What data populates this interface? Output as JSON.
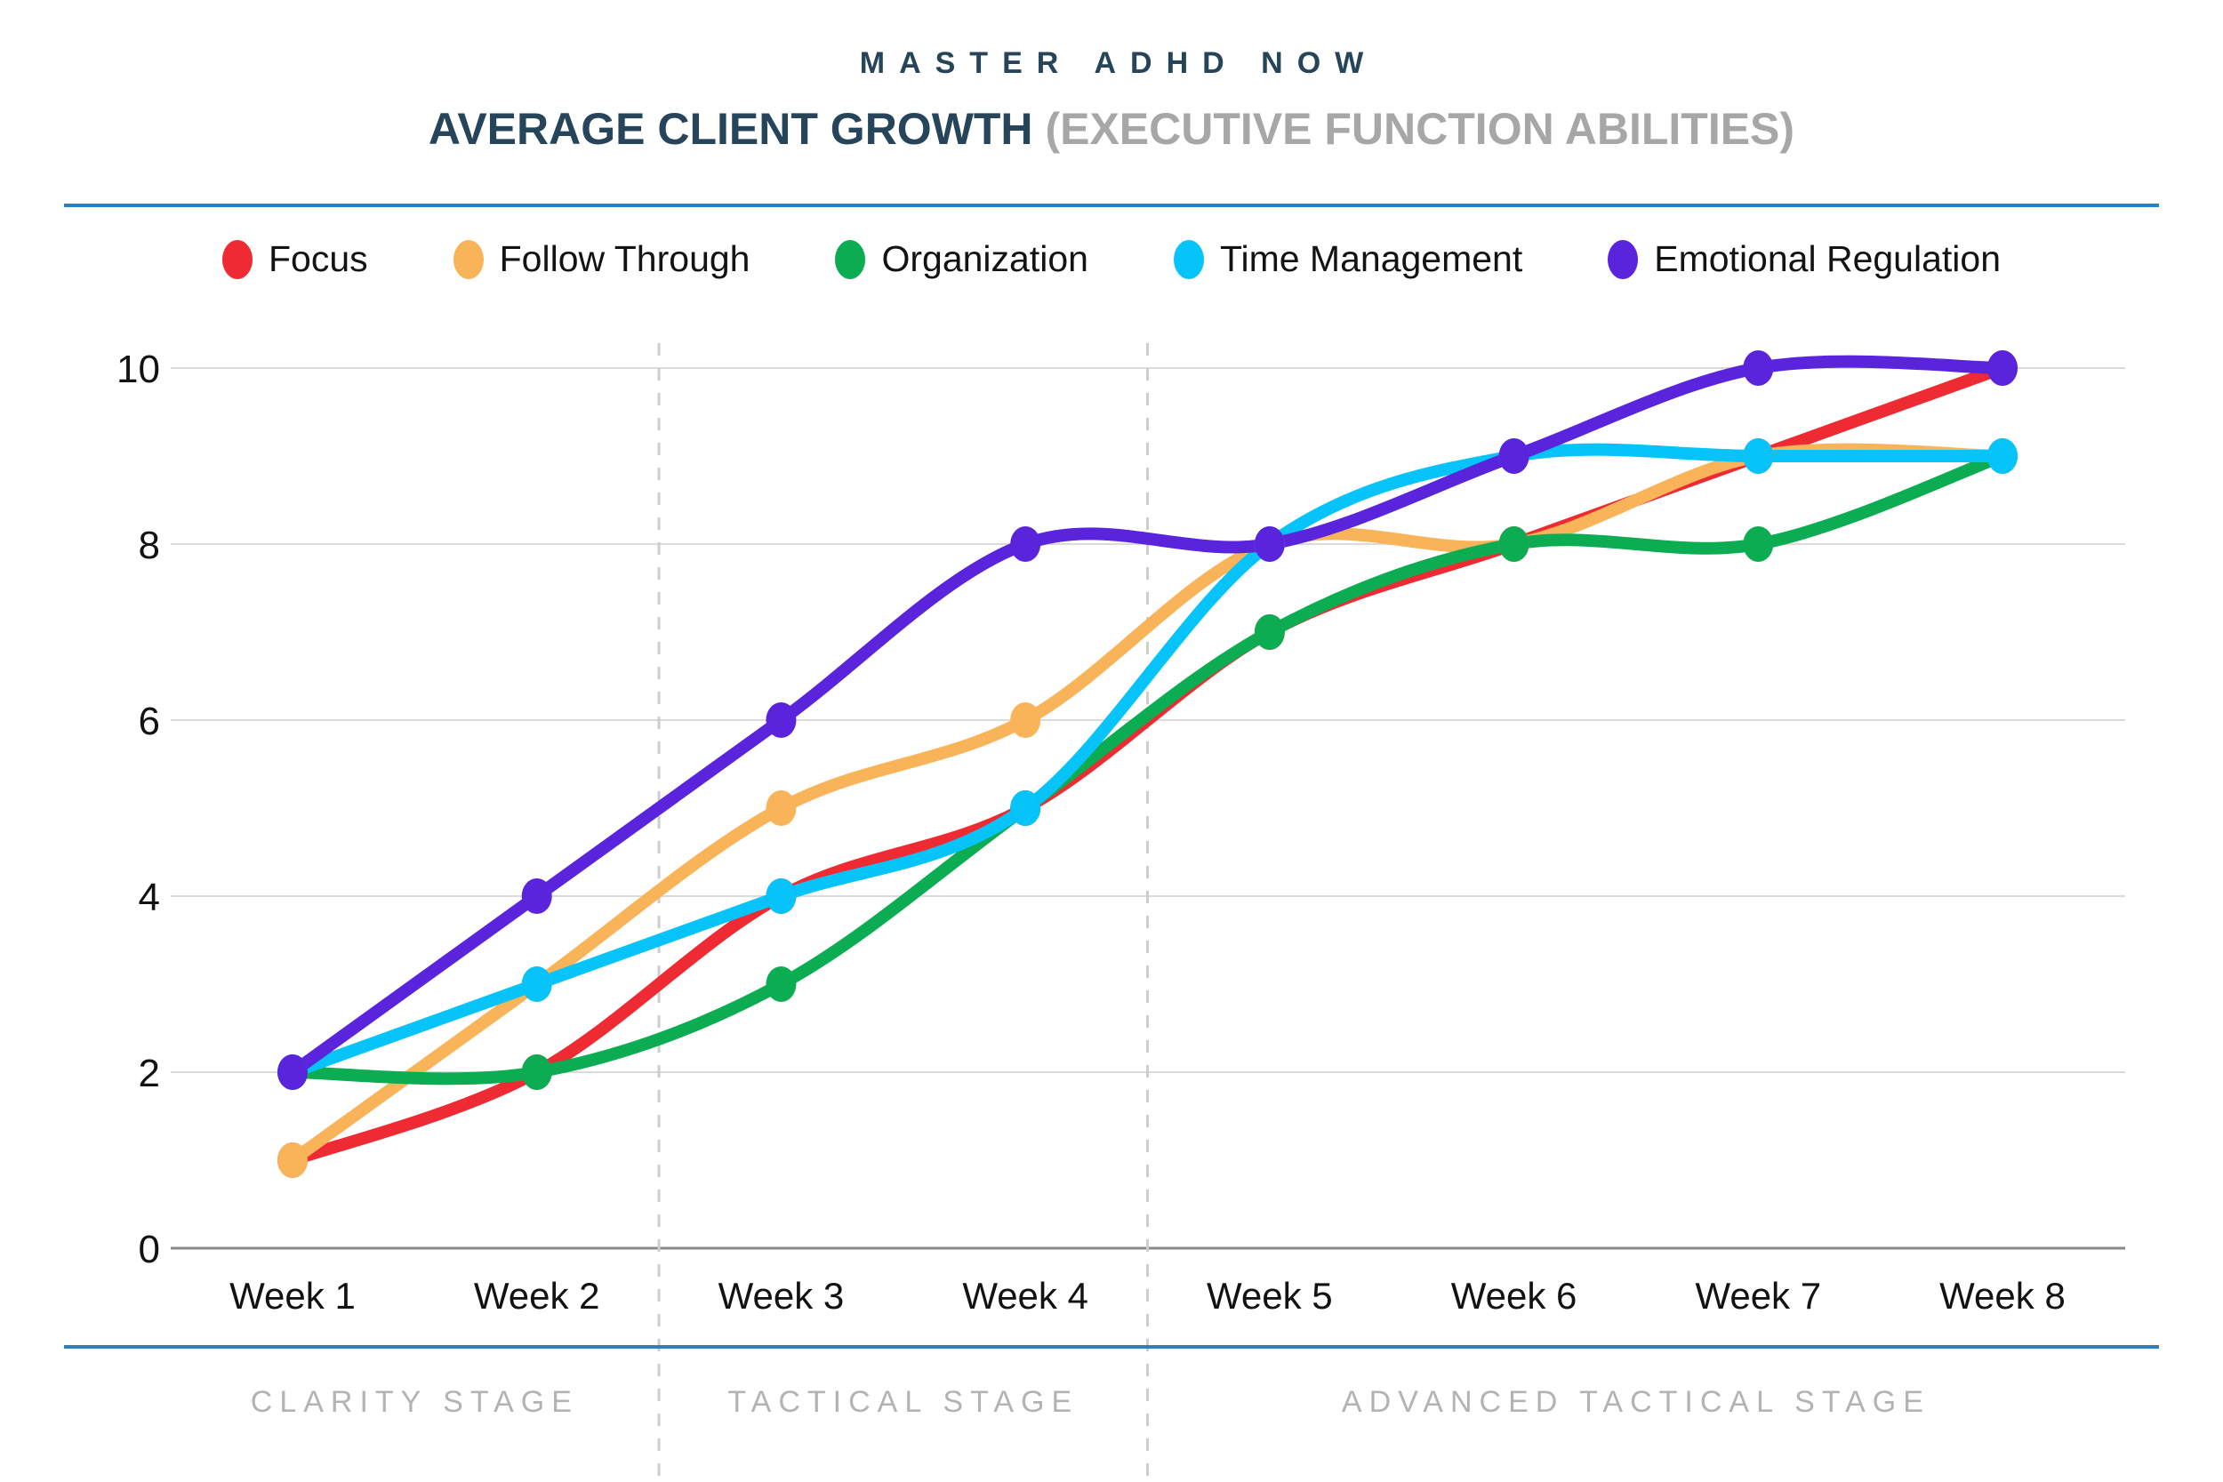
{
  "header": {
    "brand": "MASTER ADHD NOW",
    "title": "AVERAGE CLIENT GROWTH",
    "title_accent": "(EXECUTIVE FUNCTION ABILITIES)"
  },
  "chart_data": {
    "type": "line",
    "categories": [
      "Week 1",
      "Week 2",
      "Week 3",
      "Week 4",
      "Week 5",
      "Week 6",
      "Week 7",
      "Week 8"
    ],
    "series": [
      {
        "name": "Focus",
        "color": "#EE2B33",
        "values": [
          1,
          2,
          4,
          5,
          7,
          8,
          9,
          10
        ]
      },
      {
        "name": "Follow Through",
        "color": "#F9B45A",
        "values": [
          1,
          3,
          5,
          6,
          8,
          8,
          9,
          9
        ]
      },
      {
        "name": "Organization",
        "color": "#0CAC53",
        "values": [
          2,
          2,
          3,
          5,
          7,
          8,
          8,
          9
        ]
      },
      {
        "name": "Time Management",
        "color": "#06C3F9",
        "values": [
          2,
          3,
          4,
          5,
          8,
          9,
          9,
          9
        ]
      },
      {
        "name": "Emotional Regulation",
        "color": "#5A23DC",
        "values": [
          2,
          4,
          6,
          8,
          8,
          9,
          10,
          10
        ]
      }
    ],
    "ylim": [
      0,
      10
    ],
    "y_ticks": [
      0,
      2,
      4,
      6,
      8,
      10
    ],
    "grid": "horizontal-only",
    "legend_position": "top",
    "curve": "smooth-spline",
    "stage_bands": [
      {
        "label": "CLARITY STAGE",
        "from": "Week 1",
        "to": "Week 2"
      },
      {
        "label": "TACTICAL STAGE",
        "from": "Week 3",
        "to": "Week 4"
      },
      {
        "label": "ADVANCED TACTICAL STAGE",
        "from": "Week 5",
        "to": "Week 8"
      }
    ]
  },
  "colors": {
    "title_navy": "#26455A",
    "subtitle_gray": "#A7A7A7",
    "divider_blue": "#2E7FBE",
    "stage_gray": "#B3B3B3",
    "gridline": "#DBDBDB",
    "axis_zero_line": "#8A8A8A",
    "dashed_separator": "#CDCDCD",
    "axis_text": "#121212"
  }
}
